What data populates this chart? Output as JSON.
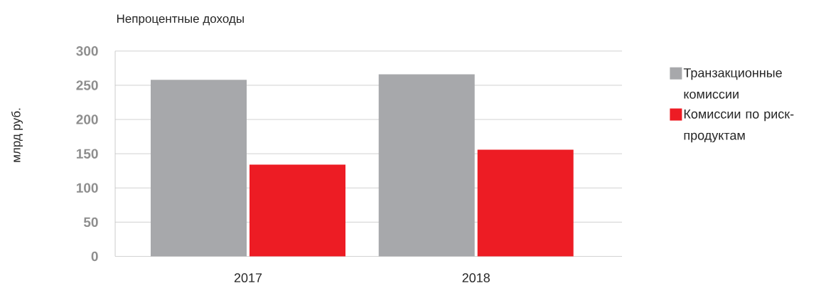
{
  "chart_data": {
    "type": "bar",
    "title": "Непроцентные доходы",
    "ylabel": "млрд руб.",
    "categories": [
      "2017",
      "2018"
    ],
    "series": [
      {
        "name": "Транзакционные комиссии",
        "color": "#a7a8ab",
        "values": [
          258,
          266
        ]
      },
      {
        "name": "Комиссии по риск-продуктам",
        "color": "#ed1c24",
        "values": [
          134,
          156
        ]
      }
    ],
    "ylim": [
      0,
      300
    ],
    "yticks": [
      0,
      50,
      100,
      150,
      200,
      250,
      300
    ],
    "grid": "y",
    "legend": "right"
  }
}
